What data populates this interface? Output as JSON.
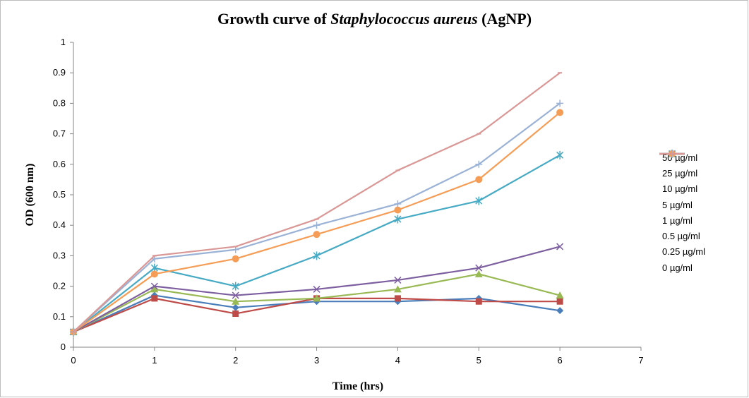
{
  "chart_data": {
    "type": "line",
    "title": {
      "prefix": "Growth curve of ",
      "italic": "Staphylococcus aureus",
      "suffix": " (AgNP)"
    },
    "xlabel": "Time (hrs)",
    "ylabel": "OD (600 nm)",
    "xlim": [
      0,
      7
    ],
    "ylim": [
      0,
      1
    ],
    "x_ticks": [
      "0",
      "1",
      "2",
      "3",
      "4",
      "5",
      "6",
      "7"
    ],
    "y_ticks": [
      "0",
      "0.1",
      "0.2",
      "0.3",
      "0.4",
      "0.5",
      "0.6",
      "0.7",
      "0.8",
      "0.9",
      "1"
    ],
    "grid": false,
    "legend_position": "right",
    "x": [
      0,
      1,
      2,
      3,
      4,
      5,
      6
    ],
    "series": [
      {
        "name": "50 µg/ml",
        "color": "#4a7ebb",
        "marker": "diamond",
        "values": [
          0.05,
          0.17,
          0.13,
          0.15,
          0.15,
          0.16,
          0.12
        ]
      },
      {
        "name": "25 µg/ml",
        "color": "#be4b48",
        "marker": "square",
        "values": [
          0.05,
          0.16,
          0.11,
          0.16,
          0.16,
          0.15,
          0.15
        ]
      },
      {
        "name": "10 µg/ml",
        "color": "#98b954",
        "marker": "triangle",
        "values": [
          0.05,
          0.19,
          0.15,
          0.16,
          0.19,
          0.24,
          0.17
        ]
      },
      {
        "name": "5 µg/ml",
        "color": "#7d5fa0",
        "marker": "x",
        "values": [
          0.05,
          0.2,
          0.17,
          0.19,
          0.22,
          0.26,
          0.33
        ]
      },
      {
        "name": "1 µg/ml",
        "color": "#46aac4",
        "marker": "star",
        "values": [
          0.05,
          0.26,
          0.2,
          0.3,
          0.42,
          0.48,
          0.63
        ]
      },
      {
        "name": "0.5 µg/ml",
        "color": "#f59d56",
        "marker": "circle",
        "values": [
          0.05,
          0.24,
          0.29,
          0.37,
          0.45,
          0.55,
          0.77
        ]
      },
      {
        "name": "0.25 µg/ml",
        "color": "#9bb2d7",
        "marker": "plus",
        "values": [
          0.05,
          0.29,
          0.32,
          0.4,
          0.47,
          0.6,
          0.8
        ]
      },
      {
        "name": "0 µg/ml",
        "color": "#d99795",
        "marker": "dash",
        "values": [
          0.05,
          0.3,
          0.33,
          0.42,
          0.58,
          0.7,
          0.9
        ]
      }
    ]
  }
}
